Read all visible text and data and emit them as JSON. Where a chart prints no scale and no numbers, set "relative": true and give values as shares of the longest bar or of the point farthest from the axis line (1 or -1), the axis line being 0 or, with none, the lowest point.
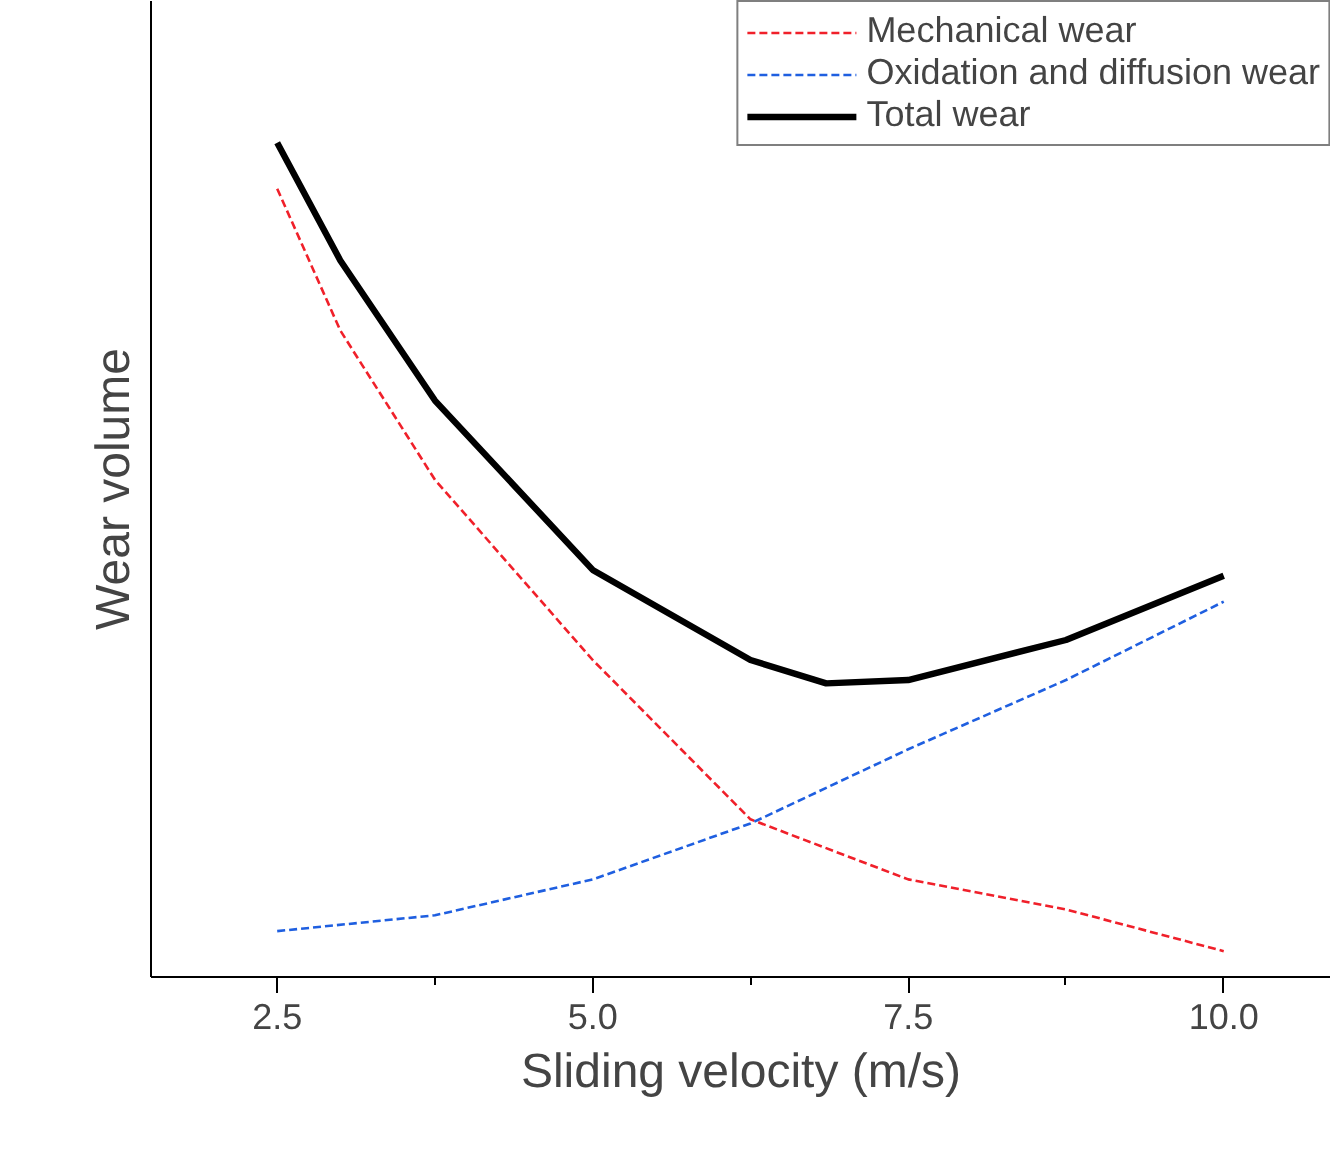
{
  "chart_data": {
    "type": "line",
    "xlabel": "Sliding velocity (m/s)",
    "ylabel": "Wear volume",
    "relative": true,
    "xlim": [
      1.5,
      10.85
    ],
    "xticks": [
      {
        "value": 2.5,
        "label": "2.5"
      },
      {
        "value": 5,
        "label": "5.0"
      },
      {
        "value": 7.5,
        "label": "7.5"
      },
      {
        "value": 10,
        "label": "10.0"
      }
    ],
    "legend": "top right",
    "grid": false,
    "marker": "none",
    "series": [
      {
        "name": "Mechanical wear",
        "color": "#f0202a",
        "line_style": "dashed",
        "x": [
          2.5,
          3.0,
          3.75,
          5.0,
          6.25,
          7.5,
          8.75,
          10.0
        ],
        "values": [
          0.945,
          0.775,
          0.596,
          0.38,
          0.189,
          0.117,
          0.081,
          0.031
        ]
      },
      {
        "name": "Oxidation and diffusion wear",
        "color": "#1f5fe0",
        "line_style": "dashed",
        "x": [
          2.5,
          3.75,
          5.0,
          6.25,
          7.5,
          8.75,
          10.0
        ],
        "values": [
          0.055,
          0.074,
          0.117,
          0.184,
          0.273,
          0.356,
          0.45
        ]
      },
      {
        "name": "Total wear",
        "color": "#000000",
        "line_style": "solid",
        "x": [
          2.5,
          3.0,
          3.75,
          5.0,
          6.25,
          6.85,
          7.5,
          8.75,
          10.0
        ],
        "values": [
          1.0,
          0.859,
          0.691,
          0.488,
          0.38,
          0.352,
          0.356,
          0.404,
          0.481
        ]
      }
    ]
  }
}
